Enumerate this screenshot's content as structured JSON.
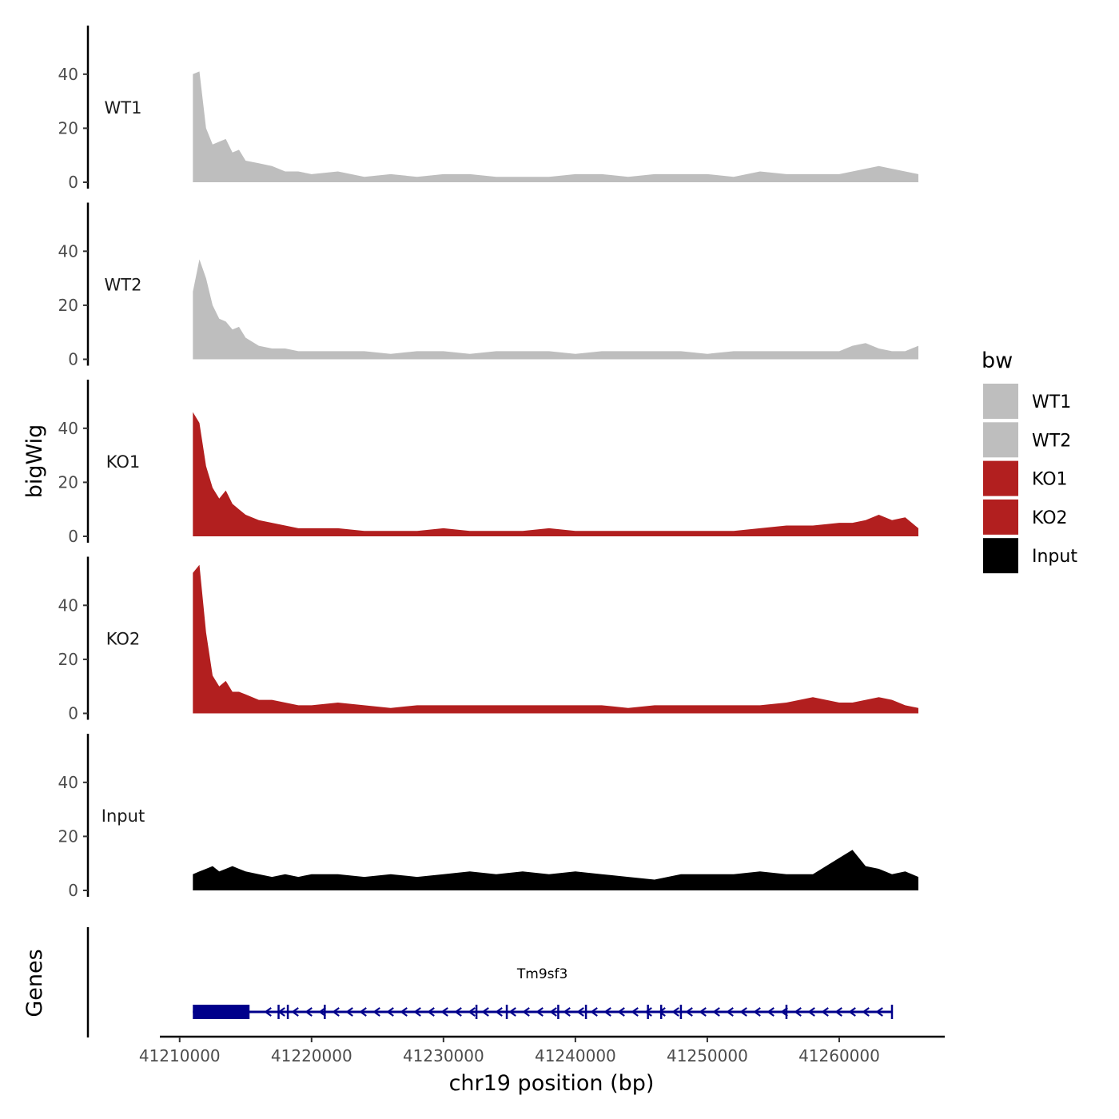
{
  "chart_data": {
    "type": "area",
    "title": "",
    "xlabel": "chr19 position (bp)",
    "ylabel": "bigWig",
    "genes_label": "Genes",
    "legend_title": "bw",
    "legend_position": "right",
    "grid": false,
    "xlim": [
      41208500,
      41268000
    ],
    "ylim": [
      0,
      58
    ],
    "x_ticks": [
      41210000,
      41220000,
      41230000,
      41240000,
      41250000,
      41260000
    ],
    "x_tick_labels": [
      "41210000",
      "41220000",
      "41230000",
      "41240000",
      "41250000",
      "41260000"
    ],
    "y_ticks": [
      0,
      20,
      40
    ],
    "y_tick_labels": [
      "0",
      "20",
      "40"
    ],
    "x": [
      41211000,
      41211500,
      41212000,
      41212500,
      41213000,
      41213500,
      41214000,
      41214500,
      41215000,
      41216000,
      41217000,
      41218000,
      41219000,
      41220000,
      41222000,
      41224000,
      41226000,
      41228000,
      41230000,
      41232000,
      41234000,
      41236000,
      41238000,
      41240000,
      41242000,
      41244000,
      41246000,
      41248000,
      41250000,
      41252000,
      41254000,
      41256000,
      41258000,
      41260000,
      41261000,
      41262000,
      41263000,
      41264000,
      41265000,
      41266000
    ],
    "series": [
      {
        "name": "WT1",
        "color": "#bebebe",
        "values": [
          40,
          41,
          20,
          14,
          15,
          16,
          11,
          12,
          8,
          7,
          6,
          4,
          4,
          3,
          4,
          2,
          3,
          2,
          3,
          3,
          2,
          2,
          2,
          3,
          3,
          2,
          3,
          3,
          3,
          2,
          4,
          3,
          3,
          3,
          4,
          5,
          6,
          5,
          4,
          3
        ]
      },
      {
        "name": "WT2",
        "color": "#bebebe",
        "values": [
          25,
          37,
          30,
          20,
          15,
          14,
          11,
          12,
          8,
          5,
          4,
          4,
          3,
          3,
          3,
          3,
          2,
          3,
          3,
          2,
          3,
          3,
          3,
          2,
          3,
          3,
          3,
          3,
          2,
          3,
          3,
          3,
          3,
          3,
          5,
          6,
          4,
          3,
          3,
          5
        ]
      },
      {
        "name": "KO1",
        "color": "#b21f1f",
        "values": [
          46,
          42,
          26,
          18,
          14,
          17,
          12,
          10,
          8,
          6,
          5,
          4,
          3,
          3,
          3,
          2,
          2,
          2,
          3,
          2,
          2,
          2,
          3,
          2,
          2,
          2,
          2,
          2,
          2,
          2,
          3,
          4,
          4,
          5,
          5,
          6,
          8,
          6,
          7,
          3
        ]
      },
      {
        "name": "KO2",
        "color": "#b21f1f",
        "values": [
          52,
          55,
          30,
          14,
          10,
          12,
          8,
          8,
          7,
          5,
          5,
          4,
          3,
          3,
          4,
          3,
          2,
          3,
          3,
          3,
          3,
          3,
          3,
          3,
          3,
          2,
          3,
          3,
          3,
          3,
          3,
          4,
          6,
          4,
          4,
          5,
          6,
          5,
          3,
          2
        ]
      },
      {
        "name": "Input",
        "color": "#000000",
        "values": [
          6,
          7,
          8,
          9,
          7,
          8,
          9,
          8,
          7,
          6,
          5,
          6,
          5,
          6,
          6,
          5,
          6,
          5,
          6,
          7,
          6,
          7,
          6,
          7,
          6,
          5,
          4,
          6,
          6,
          6,
          7,
          6,
          6,
          12,
          15,
          9,
          8,
          6,
          7,
          5
        ]
      }
    ],
    "gene": {
      "name": "Tm9sf3",
      "color": "#00008b",
      "start": 41211000,
      "end": 41264000,
      "thick_end": 41215300,
      "strand": "-",
      "exons": [
        41217500,
        41218200,
        41221000,
        41232500,
        41234800,
        41238700,
        41240800,
        41245500,
        41246500,
        41248000,
        41256000,
        41264000
      ]
    }
  }
}
